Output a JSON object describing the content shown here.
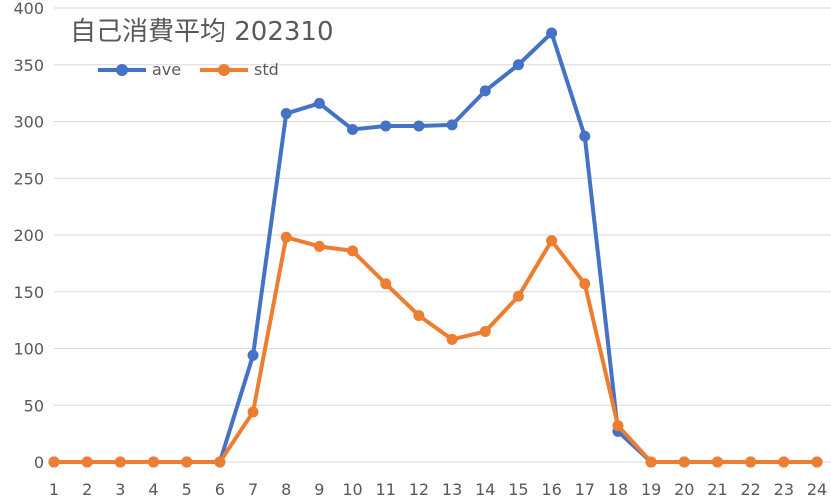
{
  "chart_data": {
    "type": "line",
    "title": "自己消費平均  202310",
    "xlabel": "",
    "ylabel": "",
    "ylim": [
      0,
      400
    ],
    "yticks": [
      0,
      50,
      100,
      150,
      200,
      250,
      300,
      350,
      400
    ],
    "grid": true,
    "legend_position": "top-left",
    "categories": [
      "1",
      "2",
      "3",
      "4",
      "5",
      "6",
      "7",
      "8",
      "9",
      "10",
      "11",
      "12",
      "13",
      "14",
      "15",
      "16",
      "17",
      "18",
      "19",
      "20",
      "21",
      "22",
      "23",
      "24"
    ],
    "series": [
      {
        "name": "ave",
        "color": "#4472C4",
        "values": [
          0,
          0,
          0,
          0,
          0,
          0,
          94,
          307,
          316,
          293,
          296,
          296,
          297,
          327,
          350,
          378,
          287,
          27,
          0,
          0,
          0,
          0,
          0,
          0
        ]
      },
      {
        "name": "std",
        "color": "#ED7D31",
        "values": [
          0,
          0,
          0,
          0,
          0,
          0,
          44,
          198,
          190,
          186,
          157,
          129,
          108,
          115,
          146,
          195,
          157,
          32,
          0,
          0,
          0,
          0,
          0,
          0
        ]
      }
    ],
    "colors": {
      "grid": "#D9D9D9",
      "text": "#595959"
    }
  }
}
